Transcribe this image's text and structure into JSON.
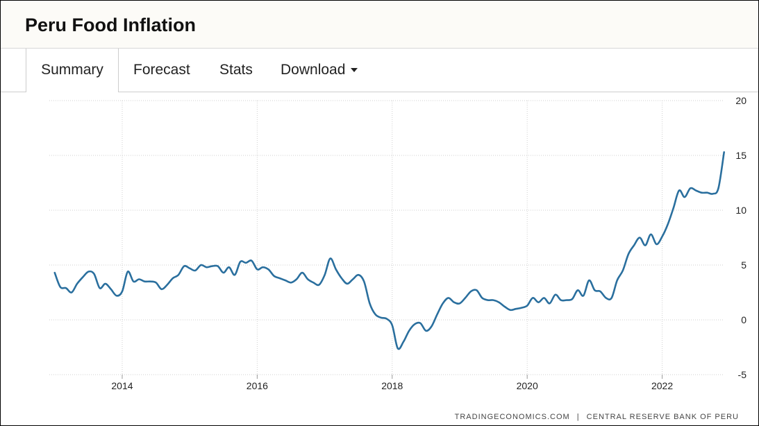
{
  "header": {
    "title": "Peru Food Inflation"
  },
  "tabs": [
    {
      "label": "Summary",
      "active": true
    },
    {
      "label": "Forecast"
    },
    {
      "label": "Stats"
    },
    {
      "label": "Download",
      "dropdown": true
    }
  ],
  "source": {
    "site": "TRADINGECONOMICS.COM",
    "separator": "|",
    "agency": "CENTRAL RESERVE BANK OF PERU"
  },
  "colors": {
    "line": "#2a6f9e",
    "grid": "#cfcfcf",
    "header_bg": "#fcfbf7"
  },
  "chart_data": {
    "type": "line",
    "title": "",
    "xlabel": "",
    "ylabel": "",
    "xlim": [
      2012.92,
      2022.92
    ],
    "ylim": [
      -5,
      20
    ],
    "x_ticks": [
      2014,
      2016,
      2018,
      2020,
      2022
    ],
    "x_tick_labels": [
      "2014",
      "2016",
      "2018",
      "2020",
      "2022"
    ],
    "y_ticks": [
      -5,
      0,
      5,
      10,
      15,
      20
    ],
    "y_tick_labels": [
      "-5",
      "0",
      "5",
      "10",
      "15",
      "20"
    ],
    "grid": true,
    "series": [
      {
        "x": [
          2013.0,
          2013.083,
          2013.167,
          2013.25,
          2013.333,
          2013.417,
          2013.5,
          2013.583,
          2013.667,
          2013.75,
          2013.833,
          2013.917,
          2014.0,
          2014.083,
          2014.167,
          2014.25,
          2014.333,
          2014.417,
          2014.5,
          2014.583,
          2014.667,
          2014.75,
          2014.833,
          2014.917,
          2015.0,
          2015.083,
          2015.167,
          2015.25,
          2015.333,
          2015.417,
          2015.5,
          2015.583,
          2015.667,
          2015.75,
          2015.833,
          2015.917,
          2016.0,
          2016.083,
          2016.167,
          2016.25,
          2016.333,
          2016.417,
          2016.5,
          2016.583,
          2016.667,
          2016.75,
          2016.833,
          2016.917,
          2017.0,
          2017.083,
          2017.167,
          2017.25,
          2017.333,
          2017.417,
          2017.5,
          2017.583,
          2017.667,
          2017.75,
          2017.833,
          2017.917,
          2018.0,
          2018.083,
          2018.167,
          2018.25,
          2018.333,
          2018.417,
          2018.5,
          2018.583,
          2018.667,
          2018.75,
          2018.833,
          2018.917,
          2019.0,
          2019.083,
          2019.167,
          2019.25,
          2019.333,
          2019.417,
          2019.5,
          2019.583,
          2019.667,
          2019.75,
          2019.833,
          2019.917,
          2020.0,
          2020.083,
          2020.167,
          2020.25,
          2020.333,
          2020.417,
          2020.5,
          2020.583,
          2020.667,
          2020.75,
          2020.833,
          2020.917,
          2021.0,
          2021.083,
          2021.167,
          2021.25,
          2021.333,
          2021.417,
          2021.5,
          2021.583,
          2021.667,
          2021.75,
          2021.833,
          2021.917,
          2022.0,
          2022.083,
          2022.167,
          2022.25,
          2022.333,
          2022.417,
          2022.5,
          2022.583,
          2022.667,
          2022.75,
          2022.833,
          2022.917
        ],
        "y": [
          4.3,
          3.0,
          2.9,
          2.5,
          3.3,
          3.9,
          4.4,
          4.2,
          2.9,
          3.3,
          2.8,
          2.2,
          2.6,
          4.4,
          3.5,
          3.7,
          3.5,
          3.5,
          3.4,
          2.8,
          3.2,
          3.8,
          4.1,
          4.9,
          4.7,
          4.5,
          5.0,
          4.8,
          4.9,
          4.9,
          4.3,
          4.8,
          4.1,
          5.3,
          5.2,
          5.4,
          4.6,
          4.8,
          4.6,
          4.0,
          3.8,
          3.6,
          3.4,
          3.7,
          4.3,
          3.7,
          3.4,
          3.2,
          4.1,
          5.6,
          4.6,
          3.8,
          3.3,
          3.7,
          4.1,
          3.5,
          1.5,
          0.5,
          0.2,
          0.1,
          -0.5,
          -2.6,
          -2.0,
          -1.0,
          -0.4,
          -0.3,
          -1.0,
          -0.6,
          0.5,
          1.5,
          2.0,
          1.6,
          1.5,
          2.0,
          2.6,
          2.7,
          2.0,
          1.8,
          1.8,
          1.6,
          1.2,
          0.9,
          1.0,
          1.1,
          1.3,
          2.0,
          1.6,
          2.0,
          1.5,
          2.3,
          1.8,
          1.8,
          1.9,
          2.7,
          2.2,
          3.6,
          2.7,
          2.6,
          2.0,
          2.0,
          3.6,
          4.5,
          6.0,
          6.8,
          7.5,
          6.8,
          7.8,
          6.9,
          7.6,
          8.7,
          10.2,
          11.8,
          11.2,
          12.0,
          11.8,
          11.6,
          11.6,
          11.5,
          12.0,
          15.3
        ]
      }
    ]
  }
}
